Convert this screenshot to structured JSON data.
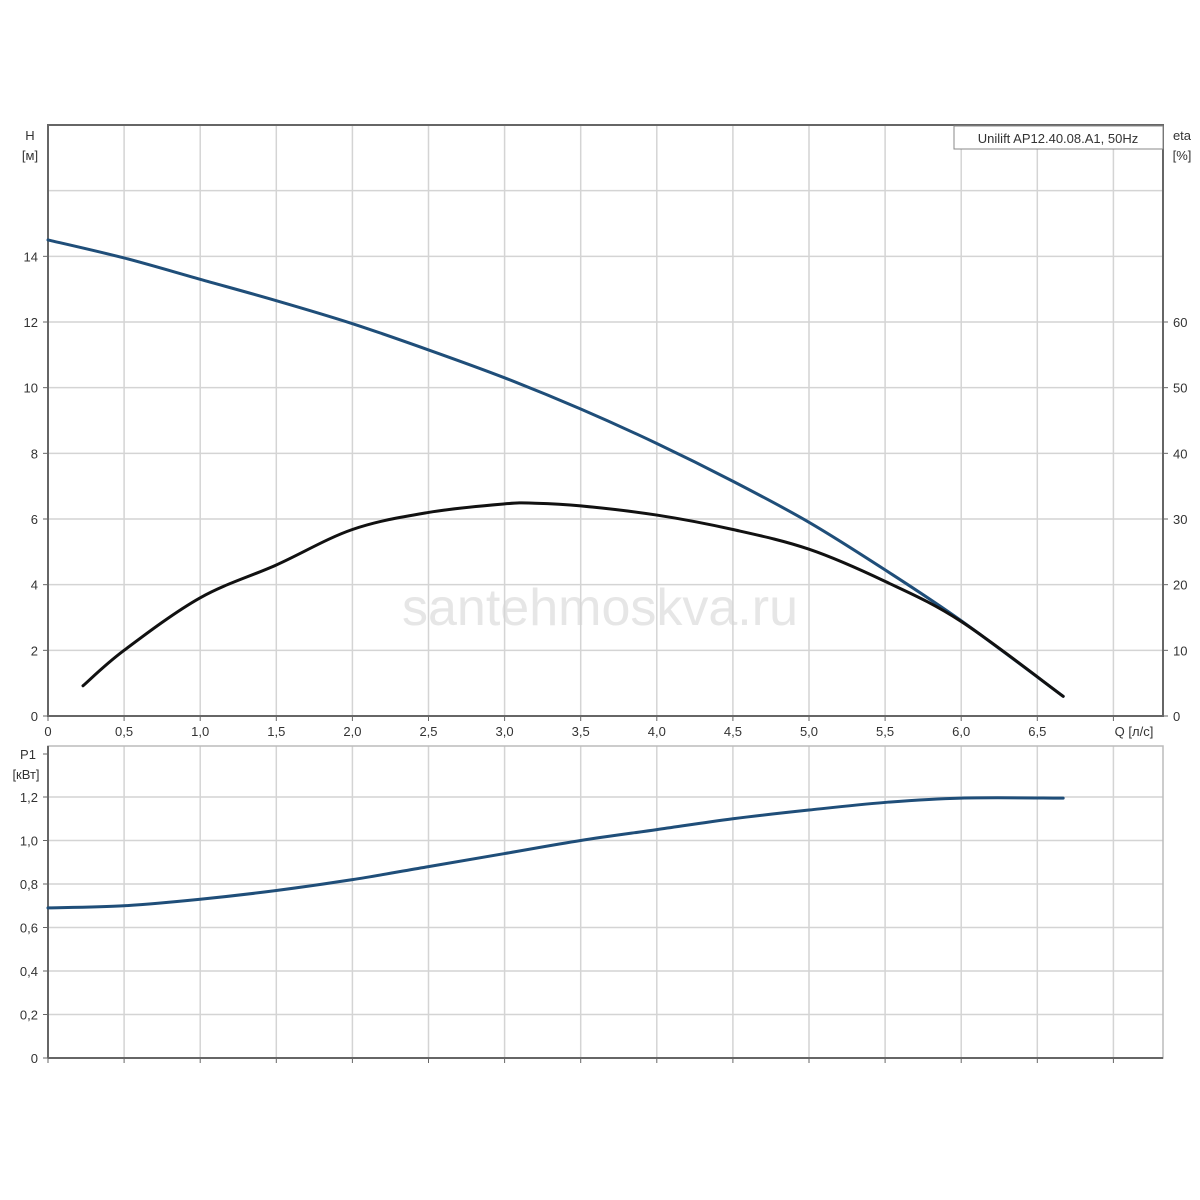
{
  "chart_data": [
    {
      "type": "line",
      "title": "Unilift AP12.40.08.A1, 50Hz",
      "xlabel": "Q [л/с]",
      "ylabel": "H",
      "ylabel_unit": "[м]",
      "y2label": "eta",
      "y2label_unit": "[%]",
      "xlim": [
        0,
        7.33
      ],
      "ylim": [
        0,
        18
      ],
      "y2lim": [
        0,
        90
      ],
      "grid": true,
      "legend": "top-right",
      "x_ticks": [
        "0",
        "0,5",
        "1,0",
        "1,5",
        "2,0",
        "2,5",
        "3,0",
        "3,5",
        "4,0",
        "4,5",
        "5,0",
        "5,5",
        "6,0",
        "6,5"
      ],
      "y_ticks": [
        "0",
        "2",
        "4",
        "6",
        "8",
        "10",
        "12",
        "14"
      ],
      "y2_ticks": [
        "0",
        "10",
        "20",
        "30",
        "40",
        "50",
        "60"
      ],
      "series": [
        {
          "name": "H",
          "axis": "left",
          "color": "#1f4e79",
          "x": [
            0,
            0.5,
            1.0,
            1.5,
            2.0,
            2.5,
            3.0,
            3.5,
            4.0,
            4.5,
            5.0,
            5.5,
            6.0,
            6.67
          ],
          "y": [
            14.5,
            13.95,
            13.3,
            12.65,
            11.95,
            11.15,
            10.3,
            9.35,
            8.3,
            7.15,
            5.9,
            4.45,
            2.9,
            0.6
          ]
        },
        {
          "name": "eta",
          "axis": "right",
          "color": "#111111",
          "x": [
            0.23,
            0.5,
            1.0,
            1.5,
            2.0,
            2.5,
            3.0,
            3.2,
            3.5,
            4.0,
            4.5,
            5.0,
            5.5,
            6.0,
            6.67
          ],
          "y": [
            4.6,
            10,
            18,
            23,
            28.4,
            31,
            32.3,
            32.4,
            32,
            30.6,
            28.4,
            25.4,
            20.5,
            14.4,
            3
          ]
        }
      ]
    },
    {
      "type": "line",
      "xlabel": "",
      "ylabel": "P1",
      "ylabel_unit": "[кВт]",
      "xlim": [
        0,
        7.33
      ],
      "ylim": [
        0,
        1.3
      ],
      "grid": true,
      "y_ticks": [
        "0",
        "0,2",
        "0,4",
        "0,6",
        "0,8",
        "1,0",
        "1,2"
      ],
      "series": [
        {
          "name": "P1",
          "color": "#1f4e79",
          "x": [
            0,
            0.5,
            1.0,
            1.5,
            2.0,
            2.5,
            3.0,
            3.5,
            4.0,
            4.5,
            5.0,
            5.5,
            6.0,
            6.67
          ],
          "y": [
            0.69,
            0.7,
            0.73,
            0.77,
            0.82,
            0.88,
            0.94,
            1.0,
            1.05,
            1.1,
            1.14,
            1.175,
            1.195,
            1.195
          ]
        }
      ]
    }
  ],
  "watermark": "santehmoskva.ru"
}
